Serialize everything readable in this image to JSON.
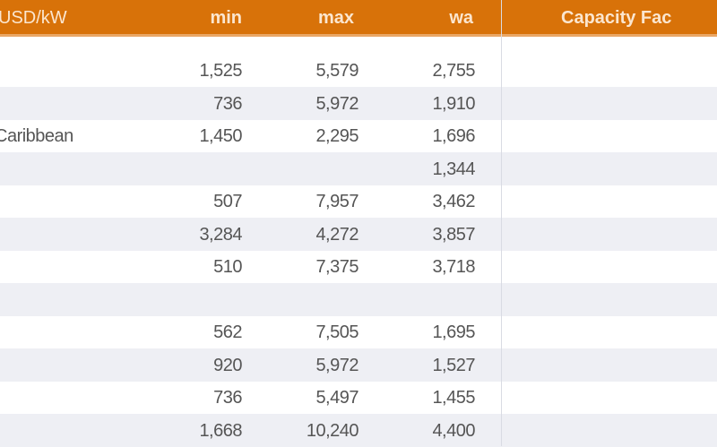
{
  "header": {
    "unit": "USD/kW",
    "min": "min",
    "max": "max",
    "wa": "wa",
    "capacity_factor": "Capacity Fac"
  },
  "rows": [
    {
      "label": "",
      "min": "1,525",
      "max": "5,579",
      "wa": "2,755"
    },
    {
      "label": "",
      "min": "736",
      "max": "5,972",
      "wa": "1,910"
    },
    {
      "label": "Caribbean",
      "min": "1,450",
      "max": "2,295",
      "wa": "1,696"
    },
    {
      "label": "",
      "min": "",
      "max": "",
      "wa": "1,344"
    },
    {
      "label": "",
      "min": "507",
      "max": "7,957",
      "wa": "3,462"
    },
    {
      "label": "",
      "min": "3,284",
      "max": "4,272",
      "wa": "3,857"
    },
    {
      "label": "",
      "min": "510",
      "max": "7,375",
      "wa": "3,718"
    },
    {
      "label": "",
      "min": "",
      "max": "",
      "wa": ""
    },
    {
      "label": "",
      "min": "562",
      "max": "7,505",
      "wa": "1,695"
    },
    {
      "label": "",
      "min": "920",
      "max": "5,972",
      "wa": "1,527"
    },
    {
      "label": "",
      "min": "736",
      "max": "5,497",
      "wa": "1,455"
    },
    {
      "label": "",
      "min": "1,668",
      "max": "10,240",
      "wa": "4,400"
    }
  ],
  "colors": {
    "header": "#d87209",
    "stripe": "#eeeff4"
  }
}
